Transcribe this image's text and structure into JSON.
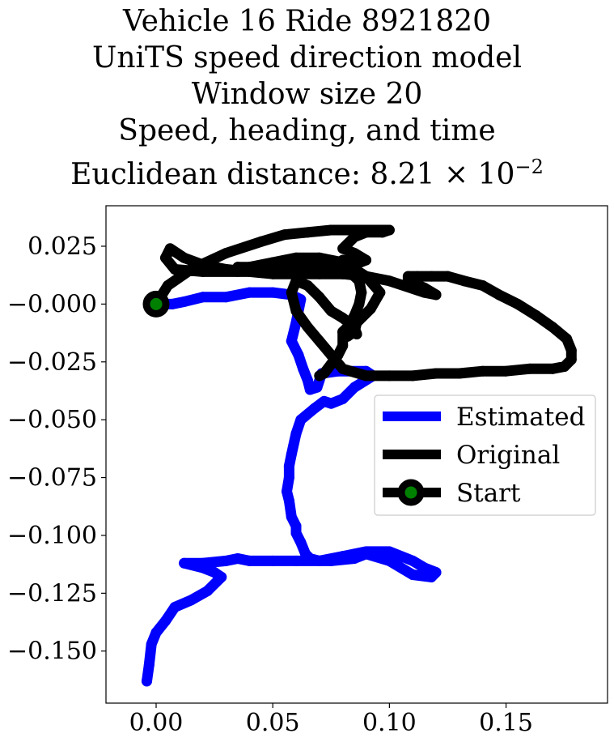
{
  "title_lines": [
    "Vehicle 16 Ride 8921820",
    "UniTS speed direction model",
    "Window size 20",
    "Speed, heading, and time"
  ],
  "distance_label": "Euclidean distance: ",
  "distance_mantissa": "8.21",
  "distance_times": "×",
  "distance_base": "10",
  "distance_exponent": "−2",
  "chart_data": {
    "type": "line",
    "title": "Vehicle 16 Ride 8921820 UniTS speed direction model Window size 20 Speed, heading, and time Euclidean distance: 8.21 × 10^-2",
    "xlabel": "",
    "ylabel": "",
    "xlim": [
      -0.0215,
      0.1935
    ],
    "ylim": [
      -0.1725,
      0.0425
    ],
    "xticks": [
      0.0,
      0.05,
      0.1,
      0.15
    ],
    "xtick_labels": [
      "0.00",
      "0.05",
      "0.10",
      "0.15"
    ],
    "yticks": [
      0.025,
      0.0,
      -0.025,
      -0.05,
      -0.075,
      -0.1,
      -0.125,
      -0.15
    ],
    "ytick_labels": [
      "0.025",
      "−0.000",
      "−0.025",
      "−0.050",
      "−0.075",
      "−0.100",
      "−0.125",
      "−0.150"
    ],
    "grid": false,
    "legend_position": "center-right",
    "series": [
      {
        "name": "Estimated",
        "color": "#0000ff",
        "x": [
          0.0,
          0.007,
          0.012,
          0.02,
          0.03,
          0.04,
          0.05,
          0.058,
          0.062,
          0.06,
          0.058,
          0.061,
          0.063,
          0.065,
          0.066,
          0.069,
          0.071,
          0.078,
          0.09,
          0.093,
          0.085,
          0.08,
          0.075,
          0.072,
          0.068,
          0.062,
          0.06,
          0.058,
          0.057,
          0.057,
          0.056,
          0.057,
          0.058,
          0.06,
          0.06,
          0.062,
          0.064,
          0.066,
          0.07,
          0.08,
          0.09,
          0.1,
          0.11,
          0.115,
          0.12,
          0.118,
          0.11,
          0.1,
          0.09,
          0.085,
          0.075,
          0.06,
          0.05,
          0.04,
          0.035,
          0.03,
          0.02,
          0.012,
          0.02,
          0.025,
          0.028,
          0.022,
          0.015,
          0.008,
          0.004,
          0.0,
          -0.002,
          -0.003,
          -0.004
        ],
        "y": [
          0.0,
          0.0,
          0.001,
          0.003,
          0.003,
          0.005,
          0.005,
          0.004,
          0.002,
          -0.008,
          -0.016,
          -0.022,
          -0.028,
          -0.033,
          -0.037,
          -0.036,
          -0.03,
          -0.029,
          -0.029,
          -0.031,
          -0.036,
          -0.041,
          -0.043,
          -0.042,
          -0.045,
          -0.05,
          -0.056,
          -0.065,
          -0.07,
          -0.075,
          -0.081,
          -0.085,
          -0.092,
          -0.096,
          -0.099,
          -0.103,
          -0.108,
          -0.11,
          -0.111,
          -0.109,
          -0.107,
          -0.107,
          -0.111,
          -0.114,
          -0.116,
          -0.118,
          -0.117,
          -0.111,
          -0.108,
          -0.11,
          -0.111,
          -0.111,
          -0.111,
          -0.111,
          -0.11,
          -0.111,
          -0.112,
          -0.112,
          -0.114,
          -0.116,
          -0.118,
          -0.124,
          -0.128,
          -0.131,
          -0.137,
          -0.142,
          -0.147,
          -0.156,
          -0.163
        ]
      },
      {
        "name": "Original",
        "color": "#000000",
        "x": [
          0.0,
          0.005,
          0.015,
          0.03,
          0.045,
          0.055,
          0.065,
          0.075,
          0.085,
          0.095,
          0.1,
          0.097,
          0.09,
          0.085,
          0.082,
          0.08,
          0.085,
          0.09,
          0.085,
          0.08,
          0.07,
          0.06,
          0.05,
          0.04,
          0.035,
          0.045,
          0.055,
          0.065,
          0.075,
          0.085,
          0.08,
          0.077,
          0.078,
          0.082,
          0.09,
          0.096,
          0.092,
          0.086,
          0.085,
          0.086,
          0.085,
          0.08,
          0.075,
          0.07,
          0.065,
          0.06,
          0.058,
          0.06,
          0.065,
          0.07,
          0.075,
          0.08,
          0.09,
          0.1,
          0.11,
          0.12,
          0.13,
          0.14,
          0.15,
          0.16,
          0.17,
          0.175,
          0.178,
          0.178,
          0.176,
          0.17,
          0.163,
          0.155,
          0.147,
          0.14,
          0.132,
          0.125,
          0.118,
          0.112,
          0.108,
          0.108,
          0.115,
          0.12,
          0.115,
          0.1,
          0.09,
          0.08,
          0.07,
          0.06,
          0.05,
          0.04,
          0.03,
          0.02,
          0.012,
          0.006,
          0.004,
          0.008,
          0.02,
          0.035,
          0.05,
          0.065,
          0.075,
          0.08,
          0.083,
          0.085,
          0.087,
          0.088,
          0.087,
          0.085,
          0.082,
          0.08,
          0.082,
          0.085,
          0.083,
          0.08,
          0.08,
          0.078,
          0.075,
          0.072,
          0.07,
          0.07
        ],
        "y": [
          0.0,
          0.008,
          0.015,
          0.022,
          0.027,
          0.03,
          0.031,
          0.032,
          0.032,
          0.032,
          0.032,
          0.031,
          0.031,
          0.029,
          0.026,
          0.024,
          0.022,
          0.019,
          0.017,
          0.018,
          0.02,
          0.02,
          0.018,
          0.016,
          0.016,
          0.016,
          0.016,
          0.016,
          0.017,
          0.018,
          0.019,
          0.017,
          0.016,
          0.017,
          0.012,
          0.005,
          -0.002,
          -0.008,
          -0.012,
          -0.013,
          -0.01,
          -0.006,
          -0.003,
          0.003,
          0.008,
          0.01,
          0.005,
          -0.003,
          -0.01,
          -0.016,
          -0.022,
          -0.028,
          -0.031,
          -0.031,
          -0.031,
          -0.03,
          -0.03,
          -0.029,
          -0.029,
          -0.028,
          -0.028,
          -0.027,
          -0.024,
          -0.02,
          -0.015,
          -0.01,
          -0.005,
          0.0,
          0.004,
          0.008,
          0.01,
          0.012,
          0.012,
          0.012,
          0.012,
          0.01,
          0.007,
          0.004,
          0.005,
          0.01,
          0.012,
          0.013,
          0.013,
          0.013,
          0.013,
          0.014,
          0.015,
          0.017,
          0.02,
          0.024,
          0.02,
          0.015,
          0.014,
          0.014,
          0.014,
          0.014,
          0.014,
          0.013,
          0.013,
          0.012,
          0.01,
          0.005,
          0.0,
          -0.005,
          -0.01,
          -0.012,
          -0.014,
          -0.012,
          -0.009,
          -0.012,
          -0.018,
          -0.022,
          -0.026,
          -0.03,
          -0.031,
          -0.031
        ]
      },
      {
        "name": "Start",
        "color": "#008000",
        "edge_color": "#000000",
        "x": [
          0.0
        ],
        "y": [
          0.0
        ]
      }
    ]
  }
}
